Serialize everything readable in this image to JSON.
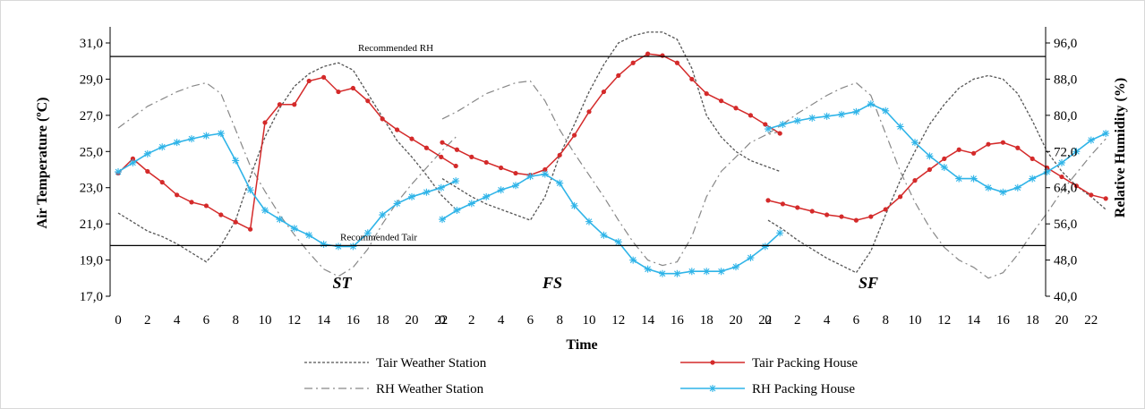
{
  "chart_data": {
    "type": "line",
    "xlabel": "Time",
    "ylabel_left": "Air Temperature  (ºC)",
    "ylabel_right": "Relative Humidity   (%)",
    "ylim_left": [
      17,
      31
    ],
    "ylim_right": [
      40,
      96
    ],
    "yticks_left": [
      "17,0",
      "19,0",
      "21,0",
      "23,0",
      "25,0",
      "27,0",
      "29,0",
      "31,0"
    ],
    "yticks_right": [
      "40,0",
      "48,0",
      "56,0",
      "64,0",
      "72,0",
      "80,0",
      "88,0",
      "96,0"
    ],
    "xticks": [
      "0",
      "2",
      "4",
      "6",
      "8",
      "10",
      "12",
      "14",
      "16",
      "18",
      "20",
      "22"
    ],
    "reference_lines": [
      {
        "label": "Recommended RH",
        "axis": "right",
        "value": 93
      },
      {
        "label": "Recommended Tair",
        "axis": "left",
        "value": 19.8
      }
    ],
    "panels": [
      {
        "label": "ST",
        "hours": [
          0,
          1,
          2,
          3,
          4,
          5,
          6,
          7,
          8,
          9,
          10,
          11,
          12,
          13,
          14,
          15,
          16,
          17,
          18,
          19,
          20,
          21,
          22,
          23
        ],
        "series": [
          {
            "name": "Tair Weather Station",
            "axis": "left",
            "values": [
              21.6,
              21.1,
              20.6,
              20.3,
              19.9,
              19.4,
              18.9,
              19.8,
              21.2,
              23.6,
              25.8,
              27.4,
              28.6,
              29.3,
              29.7,
              29.9,
              29.5,
              28.2,
              26.9,
              25.6,
              24.7,
              23.7,
              22.6,
              21.8
            ]
          },
          {
            "name": "RH Weather Station",
            "axis": "left",
            "values": [
              26.3,
              26.9,
              27.5,
              27.9,
              28.3,
              28.6,
              28.8,
              28.2,
              26.2,
              24.2,
              22.8,
              21.5,
              20.4,
              19.4,
              18.5,
              18.1,
              18.6,
              19.6,
              21.0,
              22.2,
              23.2,
              24.1,
              25.0,
              25.8
            ]
          },
          {
            "name": "Tair Packing House",
            "axis": "left",
            "values": [
              23.8,
              24.6,
              23.9,
              23.3,
              22.6,
              22.2,
              22.0,
              21.5,
              21.1,
              20.7,
              26.6,
              27.6,
              27.6,
              28.9,
              29.1,
              28.3,
              28.5,
              27.8,
              26.8,
              26.2,
              25.7,
              25.2,
              24.7,
              24.2
            ]
          },
          {
            "name": "RH Packing House",
            "axis": "right",
            "values": [
              67.5,
              69.5,
              71.5,
              73.0,
              74.0,
              74.8,
              75.5,
              76.0,
              70.0,
              63.5,
              59.0,
              57.0,
              55.0,
              53.5,
              51.5,
              51.0,
              51.0,
              54.0,
              58.0,
              60.5,
              62.0,
              63.0,
              64.0,
              65.5
            ]
          }
        ]
      },
      {
        "label": "FS",
        "hours": [
          0,
          1,
          2,
          3,
          4,
          5,
          6,
          7,
          8,
          9,
          10,
          11,
          12,
          13,
          14,
          15,
          16,
          17,
          18,
          19,
          20,
          21,
          22,
          23
        ],
        "series": [
          {
            "name": "Tair Weather Station",
            "axis": "left",
            "values": [
              23.5,
              23.0,
              22.5,
              22.1,
              21.8,
              21.5,
              21.2,
              22.5,
              24.8,
              26.5,
              28.3,
              29.8,
              31.0,
              31.4,
              31.6,
              31.6,
              31.2,
              29.6,
              27.0,
              25.8,
              25.0,
              24.5,
              24.2,
              23.9
            ]
          },
          {
            "name": "RH Weather Station",
            "axis": "left",
            "values": [
              26.8,
              27.2,
              27.7,
              28.2,
              28.5,
              28.8,
              28.9,
              27.8,
              26.2,
              24.9,
              23.7,
              22.5,
              21.2,
              20.0,
              19.0,
              18.7,
              18.9,
              20.3,
              22.5,
              23.9,
              24.7,
              25.5,
              25.9,
              26.1
            ]
          },
          {
            "name": "Tair Packing House",
            "axis": "left",
            "values": [
              25.5,
              25.1,
              24.7,
              24.4,
              24.1,
              23.8,
              23.7,
              24.0,
              24.8,
              25.9,
              27.2,
              28.3,
              29.2,
              29.9,
              30.4,
              30.3,
              29.9,
              29.0,
              28.2,
              27.8,
              27.4,
              27.0,
              26.5,
              26.0
            ]
          },
          {
            "name": "RH Packing House",
            "axis": "right",
            "values": [
              57.0,
              59.0,
              60.5,
              62.0,
              63.5,
              64.5,
              66.5,
              67.0,
              65.0,
              60.0,
              56.5,
              53.5,
              52.0,
              48.0,
              46.0,
              45.0,
              45.0,
              45.5,
              45.5,
              45.5,
              46.5,
              48.5,
              51.0,
              54.0
            ]
          }
        ]
      },
      {
        "label": "SF",
        "hours": [
          0,
          1,
          2,
          3,
          4,
          5,
          6,
          7,
          8,
          9,
          10,
          11,
          12,
          13,
          14,
          15,
          16,
          17,
          18,
          19,
          20,
          21,
          22,
          23
        ],
        "series": [
          {
            "name": "Tair Weather Station",
            "axis": "left",
            "values": [
              21.2,
              20.7,
              20.1,
              19.6,
              19.1,
              18.7,
              18.3,
              19.5,
              21.5,
              23.4,
              25.0,
              26.5,
              27.6,
              28.5,
              29.0,
              29.2,
              29.0,
              28.2,
              26.7,
              25.0,
              23.9,
              23.1,
              22.5,
              21.8
            ]
          },
          {
            "name": "RH Weather Station",
            "axis": "left",
            "values": [
              26.0,
              26.5,
              27.1,
              27.6,
              28.1,
              28.5,
              28.8,
              28.1,
              26.0,
              23.9,
              22.2,
              20.8,
              19.7,
              19.0,
              18.6,
              18.0,
              18.3,
              19.3,
              20.5,
              21.6,
              22.8,
              23.8,
              24.8,
              25.7
            ]
          },
          {
            "name": "Tair Packing House",
            "axis": "left",
            "values": [
              22.3,
              22.1,
              21.9,
              21.7,
              21.5,
              21.4,
              21.2,
              21.4,
              21.8,
              22.5,
              23.4,
              24.0,
              24.6,
              25.1,
              24.9,
              25.4,
              25.5,
              25.2,
              24.6,
              24.1,
              23.6,
              23.1,
              22.6,
              22.4
            ]
          },
          {
            "name": "RH Packing House",
            "axis": "right",
            "values": [
              77.0,
              78.0,
              78.8,
              79.4,
              79.8,
              80.2,
              80.8,
              82.5,
              81.0,
              77.5,
              74.0,
              71.0,
              68.5,
              66.0,
              66.0,
              64.0,
              63.0,
              64.0,
              66.0,
              67.5,
              69.5,
              72.0,
              74.5,
              76.0
            ]
          }
        ]
      }
    ],
    "legend": [
      {
        "name": "Tair Weather Station",
        "style": "short-dash",
        "color": "#555555"
      },
      {
        "name": "Tair Packing House",
        "style": "solid-dot",
        "color": "#d42a2a"
      },
      {
        "name": "RH Weather Station",
        "style": "dash-dot",
        "color": "#888888"
      },
      {
        "name": "RH Packing House",
        "style": "solid-star",
        "color": "#2fb4e8"
      }
    ]
  }
}
